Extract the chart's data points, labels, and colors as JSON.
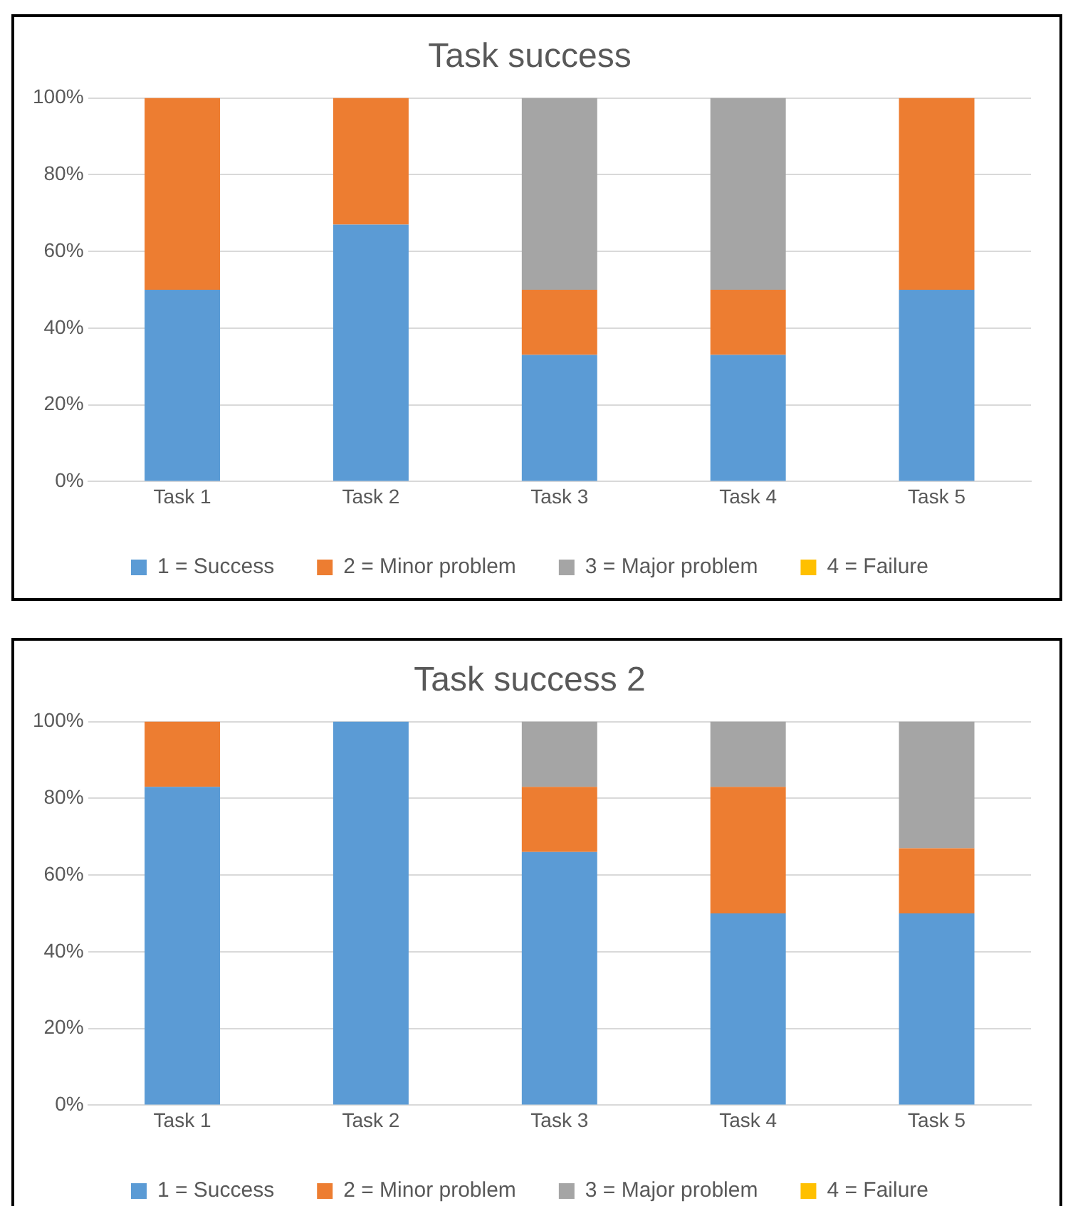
{
  "chart_data": [
    {
      "type": "bar",
      "title": "Task success",
      "stacked": true,
      "categories": [
        "Task 1",
        "Task 2",
        "Task 3",
        "Task 4",
        "Task 5"
      ],
      "series": [
        {
          "name": "1 = Success",
          "color": "#5b9bd5",
          "values": [
            50,
            67,
            33,
            33,
            50
          ]
        },
        {
          "name": "2 = Minor problem",
          "color": "#ed7d31",
          "values": [
            50,
            33,
            17,
            17,
            50
          ]
        },
        {
          "name": "3 = Major problem",
          "color": "#a5a5a5",
          "values": [
            0,
            0,
            50,
            50,
            0
          ]
        },
        {
          "name": "4 = Failure",
          "color": "#ffc000",
          "values": [
            0,
            0,
            0,
            0,
            0
          ]
        }
      ],
      "ylim": [
        0,
        100
      ],
      "yticks": [
        {
          "value": 0,
          "label": "0%"
        },
        {
          "value": 20,
          "label": "20%"
        },
        {
          "value": 40,
          "label": "40%"
        },
        {
          "value": 60,
          "label": "60%"
        },
        {
          "value": 80,
          "label": "80%"
        },
        {
          "value": 100,
          "label": "100%"
        }
      ],
      "grid": "y",
      "legend": "bottom"
    },
    {
      "type": "bar",
      "title": "Task success 2",
      "stacked": true,
      "categories": [
        "Task 1",
        "Task 2",
        "Task 3",
        "Task 4",
        "Task 5"
      ],
      "series": [
        {
          "name": "1 = Success",
          "color": "#5b9bd5",
          "values": [
            83,
            100,
            66,
            50,
            50
          ]
        },
        {
          "name": "2 = Minor problem",
          "color": "#ed7d31",
          "values": [
            17,
            0,
            17,
            33,
            17
          ]
        },
        {
          "name": "3 = Major problem",
          "color": "#a5a5a5",
          "values": [
            0,
            0,
            17,
            17,
            33
          ]
        },
        {
          "name": "4 = Failure",
          "color": "#ffc000",
          "values": [
            0,
            0,
            0,
            0,
            0
          ]
        }
      ],
      "ylim": [
        0,
        100
      ],
      "yticks": [
        {
          "value": 0,
          "label": "0%"
        },
        {
          "value": 20,
          "label": "20%"
        },
        {
          "value": 40,
          "label": "40%"
        },
        {
          "value": 60,
          "label": "60%"
        },
        {
          "value": 80,
          "label": "80%"
        },
        {
          "value": 100,
          "label": "100%"
        }
      ],
      "grid": "y",
      "legend": "bottom"
    }
  ]
}
